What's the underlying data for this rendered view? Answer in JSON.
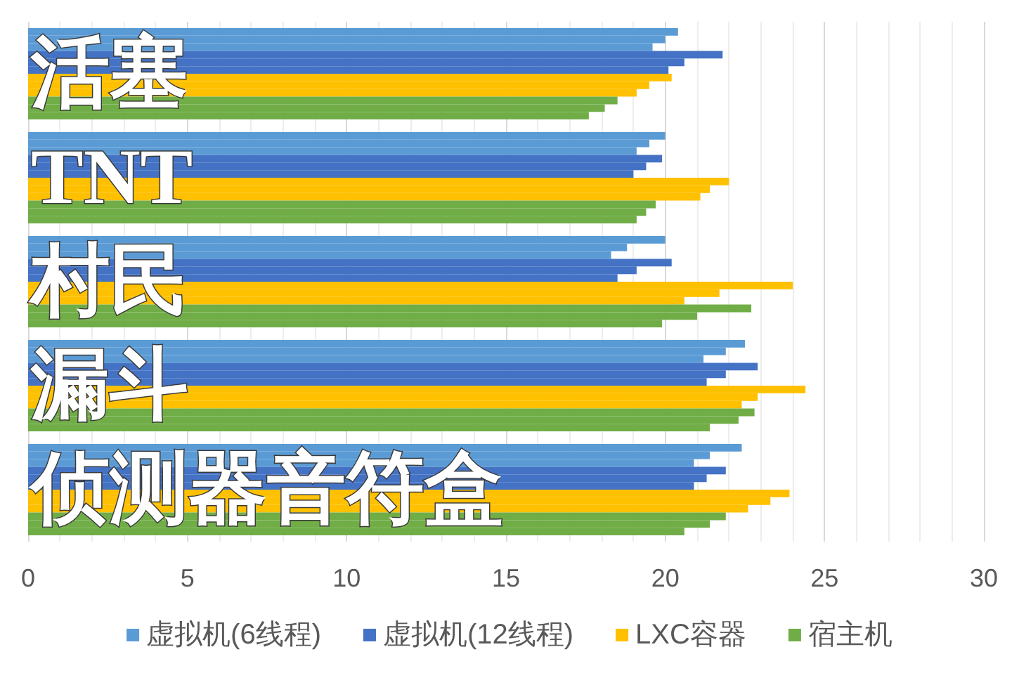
{
  "chart_data": {
    "type": "bar",
    "orientation": "horizontal",
    "categories": [
      "活塞",
      "TNT",
      "村民",
      "漏斗",
      "侦测器音符盒"
    ],
    "series": [
      {
        "name": "虚拟机(6线程)",
        "color": "#5b9bd5",
        "values": [
          20.4,
          20.0,
          20.0,
          22.5,
          22.4
        ]
      },
      {
        "color": "#5b9bd5",
        "values": [
          20.0,
          19.5,
          18.8,
          21.9,
          21.4
        ]
      },
      {
        "color": "#5b9bd5",
        "values": [
          19.6,
          19.1,
          18.3,
          21.2,
          20.9
        ]
      },
      {
        "name": "虚拟机(12线程)",
        "color": "#4472c4",
        "values": [
          21.8,
          19.9,
          20.2,
          22.9,
          21.9
        ]
      },
      {
        "color": "#4472c4",
        "values": [
          20.6,
          19.4,
          19.1,
          21.9,
          21.3
        ]
      },
      {
        "color": "#4472c4",
        "values": [
          20.1,
          19.0,
          18.5,
          21.3,
          20.9
        ]
      },
      {
        "name": "LXC容器",
        "color": "#ffc000",
        "values": [
          20.2,
          22.0,
          24.0,
          24.4,
          23.9
        ]
      },
      {
        "color": "#ffc000",
        "values": [
          19.5,
          21.4,
          21.7,
          22.9,
          23.3
        ]
      },
      {
        "color": "#ffc000",
        "values": [
          19.1,
          21.1,
          20.6,
          22.4,
          22.6
        ]
      },
      {
        "name": "宿主机",
        "color": "#70ad47",
        "values": [
          18.5,
          19.7,
          22.7,
          22.8,
          21.9
        ]
      },
      {
        "color": "#70ad47",
        "values": [
          18.1,
          19.4,
          21.0,
          22.3,
          21.4
        ]
      },
      {
        "color": "#70ad47",
        "values": [
          17.6,
          19.1,
          19.9,
          21.4,
          20.6
        ]
      }
    ],
    "xlim": [
      0,
      30
    ],
    "xticks": [
      0,
      {
        "value": 1,
        "label": null
      },
      {
        "value": 2,
        "label": null
      },
      {
        "value": 3,
        "label": null
      },
      {
        "value": 4,
        "label": null
      },
      5,
      {
        "value": 6,
        "label": null
      },
      {
        "value": 7,
        "label": null
      },
      {
        "value": 8,
        "label": null
      },
      {
        "value": 9,
        "label": null
      },
      10,
      {
        "value": 11,
        "label": null
      },
      {
        "value": 12,
        "label": null
      },
      {
        "value": 13,
        "label": null
      },
      {
        "value": 14,
        "label": null
      },
      15,
      {
        "value": 16,
        "label": null
      },
      {
        "value": 17,
        "label": null
      },
      {
        "value": 18,
        "label": null
      },
      {
        "value": 19,
        "label": null
      },
      20,
      {
        "value": 21,
        "label": null
      },
      {
        "value": 22,
        "label": null
      },
      {
        "value": 23,
        "label": null
      },
      {
        "value": 24,
        "label": null
      },
      25,
      {
        "value": 26,
        "label": null
      },
      {
        "value": 27,
        "label": null
      },
      {
        "value": 28,
        "label": null
      },
      {
        "value": 29,
        "label": null
      },
      30
    ],
    "grid": "x",
    "legend": "bottom"
  }
}
